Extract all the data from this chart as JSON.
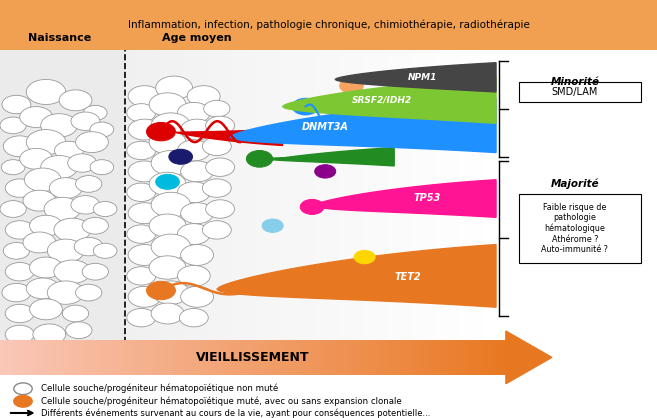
{
  "title_bar_text": "Inflammation, infection, pathologie chronique, chimiothérapie, radiothérapie",
  "title_bar_color": "#F0A050",
  "naissance_label": "Naissance",
  "age_moyen_label": "Age moyen",
  "vieillissement_text": "VIEILLISSEMENT",
  "minority_label": "Minorité",
  "minority_box": "SMD/LAM",
  "majority_label": "Majorité",
  "majority_box": "Faible risque de\npathologie\nhématologique\nAthérome ?\nAuto-immunité ?",
  "legend1": "Cellule souche/progéniteur hématopoïétique non muté",
  "legend2": "Cellule souche/progéniteur hématopoïétique muté, avec ou sans expansion clonale",
  "legend3": "Différents événements survenant au cours de la vie, ayant pour conséquences potentielle...",
  "naissance_circles": [
    [
      0.025,
      0.75
    ],
    [
      0.07,
      0.78
    ],
    [
      0.115,
      0.76
    ],
    [
      0.145,
      0.73
    ],
    [
      0.02,
      0.7
    ],
    [
      0.055,
      0.72
    ],
    [
      0.09,
      0.7
    ],
    [
      0.13,
      0.71
    ],
    [
      0.155,
      0.69
    ],
    [
      0.03,
      0.65
    ],
    [
      0.07,
      0.66
    ],
    [
      0.105,
      0.64
    ],
    [
      0.14,
      0.66
    ],
    [
      0.02,
      0.6
    ],
    [
      0.055,
      0.62
    ],
    [
      0.09,
      0.6
    ],
    [
      0.125,
      0.61
    ],
    [
      0.155,
      0.6
    ],
    [
      0.03,
      0.55
    ],
    [
      0.065,
      0.57
    ],
    [
      0.1,
      0.55
    ],
    [
      0.135,
      0.56
    ],
    [
      0.02,
      0.5
    ],
    [
      0.06,
      0.52
    ],
    [
      0.095,
      0.5
    ],
    [
      0.13,
      0.51
    ],
    [
      0.16,
      0.5
    ],
    [
      0.03,
      0.45
    ],
    [
      0.07,
      0.46
    ],
    [
      0.11,
      0.45
    ],
    [
      0.145,
      0.46
    ],
    [
      0.025,
      0.4
    ],
    [
      0.06,
      0.42
    ],
    [
      0.1,
      0.4
    ],
    [
      0.135,
      0.41
    ],
    [
      0.16,
      0.4
    ],
    [
      0.03,
      0.35
    ],
    [
      0.07,
      0.36
    ],
    [
      0.11,
      0.35
    ],
    [
      0.145,
      0.35
    ],
    [
      0.025,
      0.3
    ],
    [
      0.065,
      0.31
    ],
    [
      0.1,
      0.3
    ],
    [
      0.135,
      0.3
    ],
    [
      0.03,
      0.25
    ],
    [
      0.07,
      0.26
    ],
    [
      0.115,
      0.25
    ],
    [
      0.03,
      0.2
    ],
    [
      0.075,
      0.2
    ],
    [
      0.12,
      0.21
    ]
  ],
  "naissance_radii": [
    0.022,
    0.03,
    0.025,
    0.018,
    0.02,
    0.025,
    0.028,
    0.022,
    0.018,
    0.025,
    0.03,
    0.022,
    0.025,
    0.018,
    0.025,
    0.028,
    0.022,
    0.018,
    0.022,
    0.028,
    0.025,
    0.02,
    0.02,
    0.025,
    0.028,
    0.022,
    0.018,
    0.022,
    0.025,
    0.028,
    0.02,
    0.02,
    0.025,
    0.028,
    0.022,
    0.018,
    0.022,
    0.025,
    0.028,
    0.02,
    0.022,
    0.025,
    0.028,
    0.02,
    0.022,
    0.025,
    0.02,
    0.022,
    0.025,
    0.02
  ],
  "age_circles": [
    [
      0.22,
      0.77
    ],
    [
      0.265,
      0.79
    ],
    [
      0.31,
      0.77
    ],
    [
      0.215,
      0.73
    ],
    [
      0.255,
      0.75
    ],
    [
      0.295,
      0.73
    ],
    [
      0.33,
      0.74
    ],
    [
      0.22,
      0.69
    ],
    [
      0.26,
      0.7
    ],
    [
      0.3,
      0.69
    ],
    [
      0.335,
      0.7
    ],
    [
      0.215,
      0.64
    ],
    [
      0.255,
      0.66
    ],
    [
      0.295,
      0.64
    ],
    [
      0.33,
      0.65
    ],
    [
      0.22,
      0.59
    ],
    [
      0.26,
      0.61
    ],
    [
      0.3,
      0.59
    ],
    [
      0.335,
      0.6
    ],
    [
      0.215,
      0.54
    ],
    [
      0.255,
      0.56
    ],
    [
      0.295,
      0.54
    ],
    [
      0.33,
      0.55
    ],
    [
      0.22,
      0.49
    ],
    [
      0.26,
      0.51
    ],
    [
      0.3,
      0.49
    ],
    [
      0.335,
      0.5
    ],
    [
      0.215,
      0.44
    ],
    [
      0.255,
      0.46
    ],
    [
      0.295,
      0.44
    ],
    [
      0.33,
      0.45
    ],
    [
      0.22,
      0.39
    ],
    [
      0.26,
      0.41
    ],
    [
      0.3,
      0.39
    ],
    [
      0.215,
      0.34
    ],
    [
      0.255,
      0.36
    ],
    [
      0.295,
      0.34
    ],
    [
      0.22,
      0.29
    ],
    [
      0.26,
      0.3
    ],
    [
      0.3,
      0.29
    ],
    [
      0.215,
      0.24
    ],
    [
      0.255,
      0.25
    ],
    [
      0.295,
      0.24
    ]
  ],
  "age_radii": [
    0.025,
    0.028,
    0.025,
    0.022,
    0.028,
    0.025,
    0.02,
    0.025,
    0.03,
    0.025,
    0.022,
    0.022,
    0.028,
    0.025,
    0.022,
    0.025,
    0.03,
    0.025,
    0.022,
    0.022,
    0.028,
    0.025,
    0.022,
    0.025,
    0.03,
    0.025,
    0.022,
    0.022,
    0.028,
    0.025,
    0.022,
    0.025,
    0.03,
    0.025,
    0.022,
    0.028,
    0.025,
    0.025,
    0.028,
    0.025,
    0.022,
    0.025,
    0.022
  ]
}
